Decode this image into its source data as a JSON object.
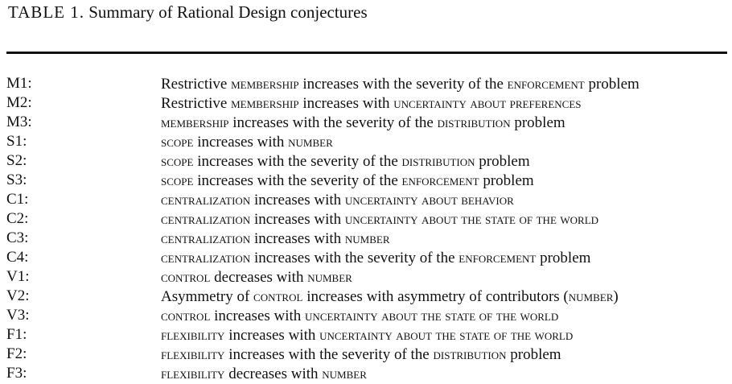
{
  "caption": {
    "label": "TABLE 1.",
    "title": "Summary of Rational Design conjectures"
  },
  "rows": [
    {
      "id": "M1:",
      "parts": [
        {
          "t": "Restrictive ",
          "sc": false
        },
        {
          "t": "membership",
          "sc": true
        },
        {
          "t": " increases with the severity of the ",
          "sc": false
        },
        {
          "t": "enforcement",
          "sc": true
        },
        {
          "t": " problem",
          "sc": false
        }
      ]
    },
    {
      "id": "M2:",
      "parts": [
        {
          "t": "Restrictive ",
          "sc": false
        },
        {
          "t": "membership",
          "sc": true
        },
        {
          "t": " increases with ",
          "sc": false
        },
        {
          "t": "uncertainty about preferences",
          "sc": true
        }
      ]
    },
    {
      "id": "M3:",
      "parts": [
        {
          "t": "membership",
          "sc": true
        },
        {
          "t": " increases with the severity of the ",
          "sc": false
        },
        {
          "t": "distribution",
          "sc": true
        },
        {
          "t": " problem",
          "sc": false
        }
      ]
    },
    {
      "id": "S1:",
      "parts": [
        {
          "t": "scope",
          "sc": true
        },
        {
          "t": " increases with ",
          "sc": false
        },
        {
          "t": "number",
          "sc": true
        }
      ]
    },
    {
      "id": "S2:",
      "parts": [
        {
          "t": "scope",
          "sc": true
        },
        {
          "t": " increases with the severity of the ",
          "sc": false
        },
        {
          "t": "distribution",
          "sc": true
        },
        {
          "t": " problem",
          "sc": false
        }
      ]
    },
    {
      "id": "S3:",
      "parts": [
        {
          "t": "scope",
          "sc": true
        },
        {
          "t": " increases with the severity of the ",
          "sc": false
        },
        {
          "t": "enforcement",
          "sc": true
        },
        {
          "t": " problem",
          "sc": false
        }
      ]
    },
    {
      "id": "C1:",
      "parts": [
        {
          "t": "centralization",
          "sc": true
        },
        {
          "t": " increases with ",
          "sc": false
        },
        {
          "t": "uncertainty about behavior",
          "sc": true
        }
      ]
    },
    {
      "id": "C2:",
      "parts": [
        {
          "t": "centralization",
          "sc": true
        },
        {
          "t": " increases with ",
          "sc": false
        },
        {
          "t": "uncertainty about the state of the world",
          "sc": true
        }
      ]
    },
    {
      "id": "C3:",
      "parts": [
        {
          "t": "centralization",
          "sc": true
        },
        {
          "t": " increases with ",
          "sc": false
        },
        {
          "t": "number",
          "sc": true
        }
      ]
    },
    {
      "id": "C4:",
      "parts": [
        {
          "t": "centralization",
          "sc": true
        },
        {
          "t": " increases with the severity of the ",
          "sc": false
        },
        {
          "t": "enforcement",
          "sc": true
        },
        {
          "t": " problem",
          "sc": false
        }
      ]
    },
    {
      "id": "V1:",
      "parts": [
        {
          "t": "control",
          "sc": true
        },
        {
          "t": " decreases with ",
          "sc": false
        },
        {
          "t": "number",
          "sc": true
        }
      ]
    },
    {
      "id": "V2:",
      "parts": [
        {
          "t": "Asymmetry of ",
          "sc": false
        },
        {
          "t": "control",
          "sc": true
        },
        {
          "t": " increases with asymmetry of contributors (",
          "sc": false
        },
        {
          "t": "number",
          "sc": true
        },
        {
          "t": ")",
          "sc": false
        }
      ]
    },
    {
      "id": "V3:",
      "parts": [
        {
          "t": "control",
          "sc": true
        },
        {
          "t": " increases with ",
          "sc": false
        },
        {
          "t": "uncertainty about the state of the world",
          "sc": true
        }
      ]
    },
    {
      "id": "F1:",
      "parts": [
        {
          "t": "flexibility",
          "sc": true
        },
        {
          "t": " increases with ",
          "sc": false
        },
        {
          "t": "uncertainty about the state of the world",
          "sc": true
        }
      ]
    },
    {
      "id": "F2:",
      "parts": [
        {
          "t": "flexibility",
          "sc": true
        },
        {
          "t": " increases with the severity of the ",
          "sc": false
        },
        {
          "t": "distribution",
          "sc": true
        },
        {
          "t": " problem",
          "sc": false
        }
      ]
    },
    {
      "id": "F3:",
      "parts": [
        {
          "t": "flexibility",
          "sc": true
        },
        {
          "t": " decreases with ",
          "sc": false
        },
        {
          "t": "number",
          "sc": true
        }
      ]
    }
  ]
}
